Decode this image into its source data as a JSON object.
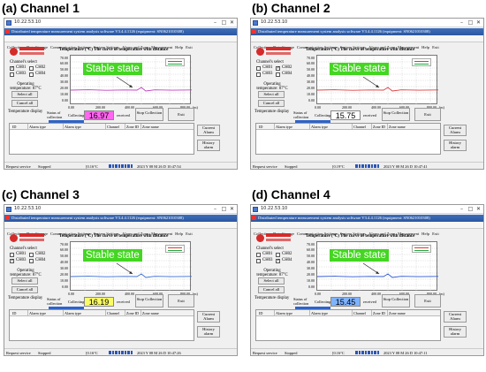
{
  "panels": [
    {
      "caption": "(a) Channel 1",
      "ip": "10.22.53.10",
      "app_title": "Distributed temperature measurement system analysis software V3.4.4.1126 (equipment: SN0621010308)",
      "menu": [
        "Collection",
        "Data Storage",
        "Communication Settings",
        "System Settings",
        "Alarm and Zone",
        "Management",
        "Help",
        "Exit"
      ],
      "channel_select_label": "Channel's select",
      "channels": [
        {
          "label": "CH01",
          "checked": true
        },
        {
          "label": "CH02",
          "checked": false
        },
        {
          "label": "CH03",
          "checked": false
        },
        {
          "label": "CH04",
          "checked": false
        }
      ],
      "select_all": "Select all",
      "cancel_all": "Cancel all",
      "operating_temperature": "Operating temperature: 87°C",
      "temperature_display": "Temperature display",
      "chart_title": "Temperature (°C)    The curve of temperature with distance",
      "stable_label": "Stable state",
      "status_of_collection": "Status of collection",
      "collecting_label": "Collecting",
      "collecting_value": "16.97",
      "collecting_color": "#ff66ee",
      "received_label": "received",
      "stop_label": "Stop Collection",
      "exit_label": "Exit",
      "alarm_columns": [
        "ID",
        "Alarm type",
        "Alarm type",
        "Channel",
        "Zone ID",
        "Zone name"
      ],
      "current_alarm": "Current Alarm",
      "history_alarm": "History alarm",
      "status_request": "Request service",
      "status_stopped": "Stopped",
      "status_temp": "[0.16°C",
      "status_time": "2023 Y 08 M 26 D  10:47:54",
      "line_color": "#c040c0"
    },
    {
      "caption": "(b) Channel 2",
      "ip": "10.22.53.10",
      "app_title": "Distributed temperature measurement system analysis software V3.4.4.1126 (equipment: SN0621010308)",
      "menu": [
        "Collection",
        "Data Storage",
        "Communication Settings",
        "System Settings",
        "Alarm and Zone",
        "Management",
        "Help",
        "Exit"
      ],
      "channel_select_label": "Channel's select",
      "channels": [
        {
          "label": "CH01",
          "checked": false
        },
        {
          "label": "CH02",
          "checked": true
        },
        {
          "label": "CH03",
          "checked": false
        },
        {
          "label": "CH04",
          "checked": false
        }
      ],
      "select_all": "Select all",
      "cancel_all": "Cancel all",
      "operating_temperature": "Operating temperature: 87°C",
      "temperature_display": "Temperature display",
      "chart_title": "Temperature (°C)    The curve of temperature with distance",
      "stable_label": "Stable state",
      "status_of_collection": "Status of collection",
      "collecting_label": "Collecting",
      "collecting_value": "15.75",
      "collecting_color": "#ffffff",
      "received_label": "received",
      "stop_label": "Stop Collection",
      "exit_label": "Exit",
      "alarm_columns": [
        "ID",
        "Alarm type",
        "Alarm type",
        "Channel",
        "Zone ID",
        "Zone name"
      ],
      "current_alarm": "Current Alarm",
      "history_alarm": "History alarm",
      "status_request": "Request service",
      "status_stopped": "Stopped",
      "status_temp": "[0.19°C",
      "status_time": "2023 Y 08 M 26 D  10:47:41",
      "line_color": "#e03c3c"
    },
    {
      "caption": "(c) Channel 3",
      "ip": "10.22.53.10",
      "app_title": "Distributed temperature measurement system analysis software V3.4.4.1126 (equipment: SN0621010308)",
      "menu": [
        "Collection",
        "Data Storage",
        "Communication Settings",
        "System Settings",
        "Alarm and Zone",
        "Management",
        "Help",
        "Exit"
      ],
      "channel_select_label": "Channel's select",
      "channels": [
        {
          "label": "CH01",
          "checked": false
        },
        {
          "label": "CH02",
          "checked": false
        },
        {
          "label": "CH03",
          "checked": true
        },
        {
          "label": "CH04",
          "checked": false
        }
      ],
      "select_all": "Select all",
      "cancel_all": "Cancel all",
      "operating_temperature": "Operating temperature: 87°C",
      "temperature_display": "Temperature display",
      "chart_title": "Temperature (°C)    The curve of temperature with distance",
      "stable_label": "Stable state",
      "status_of_collection": "Status of collection",
      "collecting_label": "Collecting",
      "collecting_value": "16.19",
      "collecting_color": "#fbfb66",
      "received_label": "received",
      "stop_label": "Stop Collection",
      "exit_label": "Exit",
      "alarm_columns": [
        "ID",
        "Alarm type",
        "Alarm type",
        "Channel",
        "Zone ID",
        "Zone name"
      ],
      "current_alarm": "Current Alarm",
      "history_alarm": "History alarm",
      "status_request": "Request service",
      "status_stopped": "Stopped",
      "status_temp": "[0.16°C",
      "status_time": "2023 Y 08 M 26 D  10:47:26",
      "line_color": "#3a6fd8"
    },
    {
      "caption": "(d) Channel 4",
      "ip": "10.22.53.10",
      "app_title": "Distributed temperature measurement system analysis software V3.4.4.1126 (equipment: SN0621010308)",
      "menu": [
        "Collection",
        "Data Storage",
        "Communication Settings",
        "System Settings",
        "Alarm and Zone",
        "Management",
        "Help",
        "Exit"
      ],
      "channel_select_label": "Channel's select",
      "channels": [
        {
          "label": "CH01",
          "checked": false
        },
        {
          "label": "CH02",
          "checked": false
        },
        {
          "label": "CH03",
          "checked": false
        },
        {
          "label": "CH04",
          "checked": true
        }
      ],
      "select_all": "Select all",
      "cancel_all": "Cancel all",
      "operating_temperature": "Operating temperature: 87°C",
      "temperature_display": "Temperature display",
      "chart_title": "Temperature (°C)    The curve of temperature with distance",
      "stable_label": "Stable state",
      "status_of_collection": "Status of collection",
      "collecting_label": "Collecting",
      "collecting_value": "15.45",
      "collecting_color": "#7fb3ff",
      "received_label": "received",
      "stop_label": "Stop Collection",
      "exit_label": "Exit",
      "alarm_columns": [
        "ID",
        "Alarm type",
        "Alarm type",
        "Channel",
        "Zone ID",
        "Zone name"
      ],
      "current_alarm": "Current Alarm",
      "history_alarm": "History alarm",
      "status_request": "Request service",
      "status_stopped": "Stopped",
      "status_temp": "[0.16°C",
      "status_time": "2023 Y 08 M 26 D  10:47:11",
      "line_color": "#2f57d8"
    }
  ],
  "axis": {
    "y_ticks": [
      "70.00",
      "60.00",
      "50.00",
      "40.00",
      "30.00",
      "20.00",
      "10.00",
      "0.00"
    ],
    "x_ticks": [
      "0.00",
      "200.00",
      "400.00",
      "600.00",
      "800.00"
    ],
    "x_unit": "(m)"
  }
}
